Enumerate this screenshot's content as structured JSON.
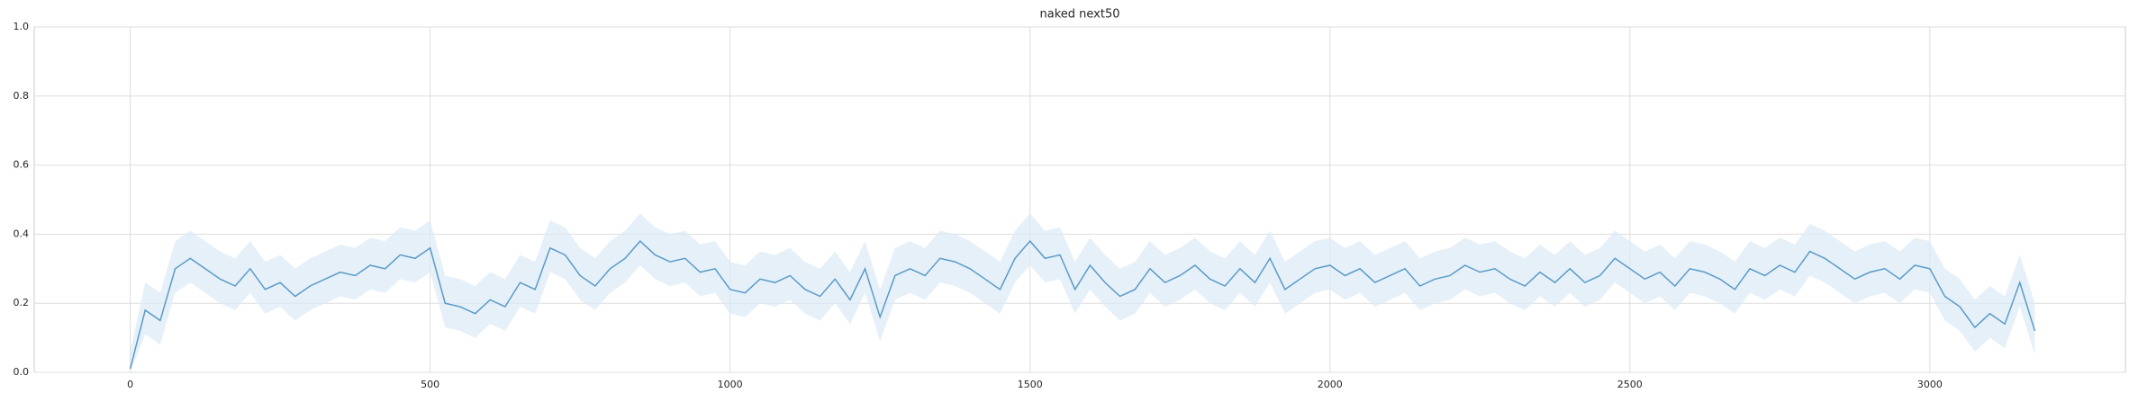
{
  "chart_data": {
    "type": "line",
    "title": "naked next50",
    "x": [
      0,
      25,
      50,
      75,
      100,
      125,
      150,
      175,
      200,
      225,
      250,
      275,
      300,
      325,
      350,
      375,
      400,
      425,
      450,
      475,
      500,
      525,
      550,
      575,
      600,
      625,
      650,
      675,
      700,
      725,
      750,
      775,
      800,
      825,
      850,
      875,
      900,
      925,
      950,
      975,
      1000,
      1025,
      1050,
      1075,
      1100,
      1125,
      1150,
      1175,
      1200,
      1225,
      1250,
      1275,
      1300,
      1325,
      1350,
      1375,
      1400,
      1425,
      1450,
      1475,
      1500,
      1525,
      1550,
      1575,
      1600,
      1625,
      1650,
      1675,
      1700,
      1725,
      1750,
      1775,
      1800,
      1825,
      1850,
      1875,
      1900,
      1925,
      1950,
      1975,
      2000,
      2025,
      2050,
      2075,
      2100,
      2125,
      2150,
      2175,
      2200,
      2225,
      2250,
      2275,
      2300,
      2325,
      2350,
      2375,
      2400,
      2425,
      2450,
      2475,
      2500,
      2525,
      2550,
      2575,
      2600,
      2625,
      2650,
      2675,
      2700,
      2725,
      2750,
      2775,
      2800,
      2825,
      2850,
      2875,
      2900,
      2925,
      2950,
      2975,
      3000,
      3025,
      3050,
      3075,
      3100,
      3125,
      3150,
      3175
    ],
    "values": [
      0.01,
      0.18,
      0.15,
      0.3,
      0.33,
      0.3,
      0.27,
      0.25,
      0.3,
      0.24,
      0.26,
      0.22,
      0.25,
      0.27,
      0.29,
      0.28,
      0.31,
      0.3,
      0.34,
      0.33,
      0.36,
      0.2,
      0.19,
      0.17,
      0.21,
      0.19,
      0.26,
      0.24,
      0.36,
      0.34,
      0.28,
      0.25,
      0.3,
      0.33,
      0.38,
      0.34,
      0.32,
      0.33,
      0.29,
      0.3,
      0.24,
      0.23,
      0.27,
      0.26,
      0.28,
      0.24,
      0.22,
      0.27,
      0.21,
      0.3,
      0.16,
      0.28,
      0.3,
      0.28,
      0.33,
      0.32,
      0.3,
      0.27,
      0.24,
      0.33,
      0.38,
      0.33,
      0.34,
      0.24,
      0.31,
      0.26,
      0.22,
      0.24,
      0.3,
      0.26,
      0.28,
      0.31,
      0.27,
      0.25,
      0.3,
      0.26,
      0.33,
      0.24,
      0.27,
      0.3,
      0.31,
      0.28,
      0.3,
      0.26,
      0.28,
      0.3,
      0.25,
      0.27,
      0.28,
      0.31,
      0.29,
      0.3,
      0.27,
      0.25,
      0.29,
      0.26,
      0.3,
      0.26,
      0.28,
      0.33,
      0.3,
      0.27,
      0.29,
      0.25,
      0.3,
      0.29,
      0.27,
      0.24,
      0.3,
      0.28,
      0.31,
      0.29,
      0.35,
      0.33,
      0.3,
      0.27,
      0.29,
      0.3,
      0.27,
      0.31,
      0.3,
      0.22,
      0.19,
      0.13,
      0.17,
      0.14,
      0.26,
      0.12
    ],
    "lower": [
      0,
      0.11,
      0.08,
      0.23,
      0.26,
      0.23,
      0.2,
      0.18,
      0.23,
      0.17,
      0.19,
      0.15,
      0.18,
      0.2,
      0.22,
      0.21,
      0.24,
      0.23,
      0.27,
      0.26,
      0.29,
      0.13,
      0.12,
      0.1,
      0.14,
      0.12,
      0.19,
      0.17,
      0.29,
      0.27,
      0.21,
      0.18,
      0.23,
      0.26,
      0.31,
      0.27,
      0.25,
      0.26,
      0.22,
      0.23,
      0.17,
      0.16,
      0.2,
      0.19,
      0.21,
      0.17,
      0.15,
      0.2,
      0.14,
      0.23,
      0.09,
      0.21,
      0.23,
      0.21,
      0.26,
      0.25,
      0.23,
      0.2,
      0.17,
      0.26,
      0.31,
      0.26,
      0.27,
      0.17,
      0.24,
      0.19,
      0.15,
      0.17,
      0.23,
      0.19,
      0.21,
      0.24,
      0.2,
      0.18,
      0.23,
      0.19,
      0.26,
      0.17,
      0.2,
      0.23,
      0.24,
      0.21,
      0.23,
      0.19,
      0.21,
      0.23,
      0.18,
      0.2,
      0.21,
      0.24,
      0.22,
      0.23,
      0.2,
      0.18,
      0.22,
      0.19,
      0.23,
      0.19,
      0.21,
      0.26,
      0.23,
      0.2,
      0.22,
      0.18,
      0.23,
      0.22,
      0.2,
      0.17,
      0.23,
      0.21,
      0.24,
      0.22,
      0.28,
      0.26,
      0.23,
      0.2,
      0.22,
      0.23,
      0.2,
      0.24,
      0.23,
      0.15,
      0.12,
      0.06,
      0.1,
      0.07,
      0.19,
      0.05
    ],
    "upper": [
      0.06,
      0.26,
      0.23,
      0.38,
      0.41,
      0.38,
      0.35,
      0.33,
      0.38,
      0.32,
      0.34,
      0.3,
      0.33,
      0.35,
      0.37,
      0.36,
      0.39,
      0.38,
      0.42,
      0.41,
      0.44,
      0.28,
      0.27,
      0.25,
      0.29,
      0.27,
      0.34,
      0.32,
      0.44,
      0.42,
      0.36,
      0.33,
      0.38,
      0.41,
      0.46,
      0.42,
      0.4,
      0.41,
      0.37,
      0.38,
      0.32,
      0.31,
      0.35,
      0.34,
      0.36,
      0.32,
      0.3,
      0.35,
      0.29,
      0.38,
      0.24,
      0.36,
      0.38,
      0.36,
      0.41,
      0.4,
      0.38,
      0.35,
      0.32,
      0.41,
      0.46,
      0.41,
      0.42,
      0.32,
      0.39,
      0.34,
      0.3,
      0.32,
      0.38,
      0.34,
      0.36,
      0.39,
      0.35,
      0.33,
      0.38,
      0.34,
      0.41,
      0.32,
      0.35,
      0.38,
      0.39,
      0.36,
      0.38,
      0.34,
      0.36,
      0.38,
      0.33,
      0.35,
      0.36,
      0.39,
      0.37,
      0.38,
      0.35,
      0.33,
      0.37,
      0.34,
      0.38,
      0.34,
      0.36,
      0.41,
      0.38,
      0.35,
      0.37,
      0.33,
      0.38,
      0.37,
      0.35,
      0.32,
      0.38,
      0.36,
      0.39,
      0.37,
      0.43,
      0.41,
      0.38,
      0.35,
      0.37,
      0.38,
      0.35,
      0.39,
      0.38,
      0.3,
      0.27,
      0.21,
      0.25,
      0.22,
      0.34,
      0.2
    ],
    "color": "#5a9bc8",
    "band_color": "#dbe9f6",
    "xlim": [
      -160,
      3326
    ],
    "ylim": [
      0,
      1
    ],
    "xticks": [
      0,
      500,
      1000,
      1500,
      2000,
      2500,
      3000
    ],
    "yticks": [
      {
        "value": 0,
        "label": "0.0"
      },
      {
        "value": 0.2,
        "label": "0.2"
      },
      {
        "value": 0.4,
        "label": "0.4"
      },
      {
        "value": 0.6,
        "label": "0.6"
      },
      {
        "value": 0.8,
        "label": "0.8"
      },
      {
        "value": 1,
        "label": "1.0"
      }
    ],
    "grid": true
  }
}
